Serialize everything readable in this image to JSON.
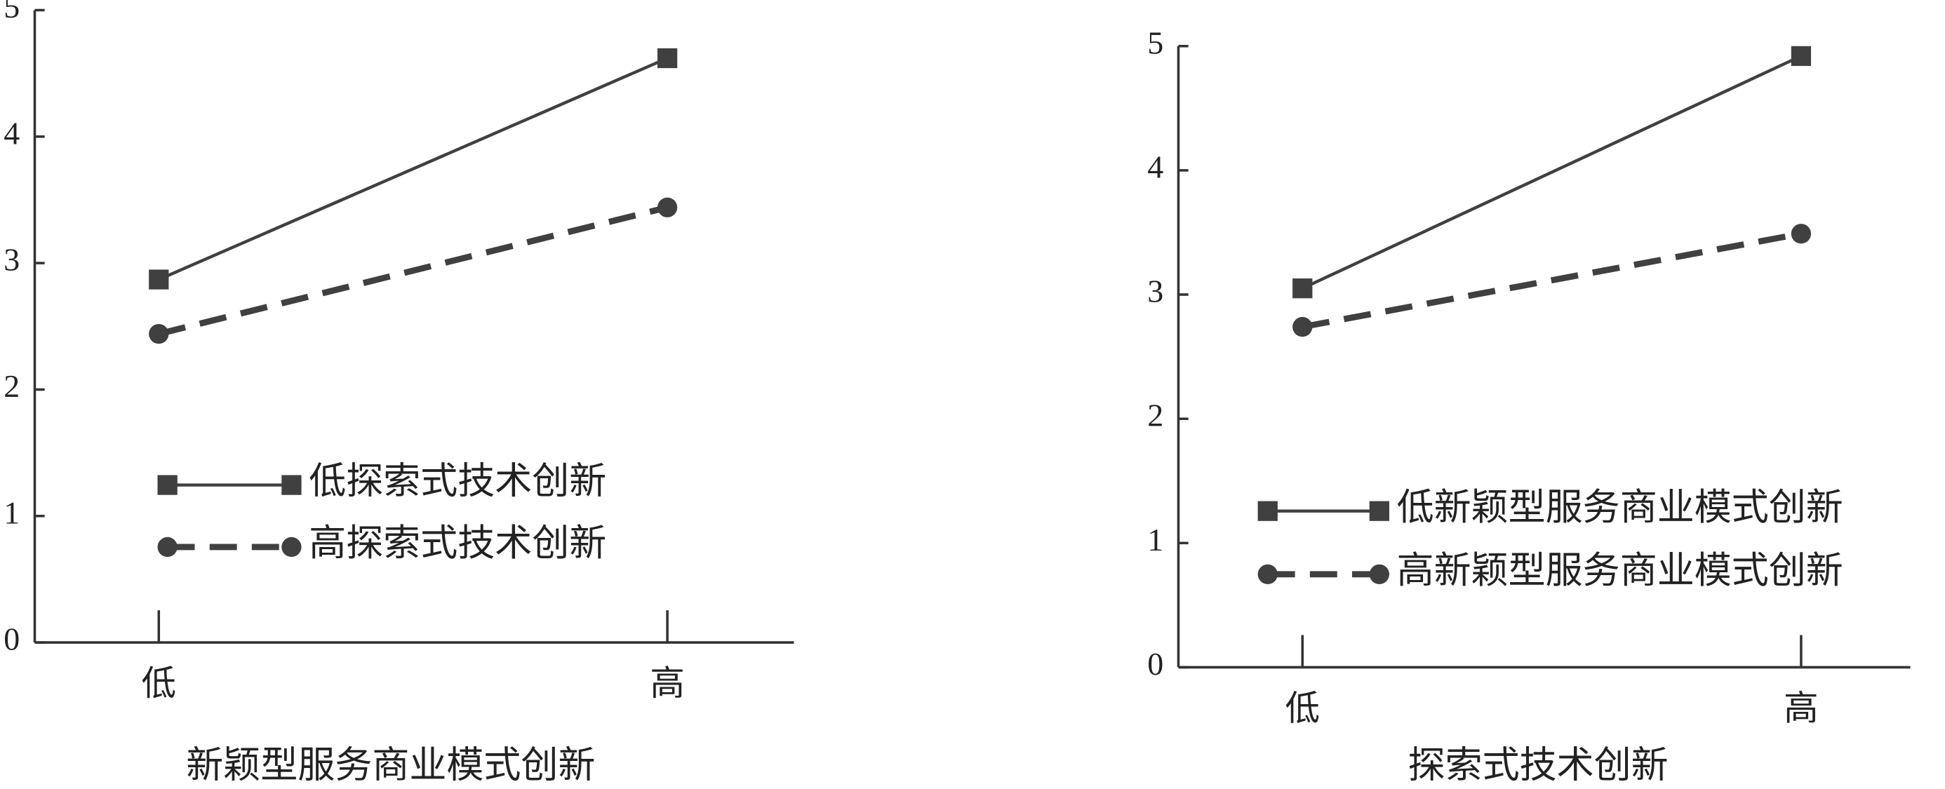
{
  "chart_data": [
    {
      "type": "line",
      "xlabel": "新颖型服务商业模式创新",
      "categories": [
        "低",
        "高"
      ],
      "series": [
        {
          "name": "低探索式技术创新",
          "color": "#404040",
          "line_style": "solid",
          "marker": "square",
          "values": [
            2.87,
            4.62
          ]
        },
        {
          "name": "高探索式技术创新",
          "color": "#404040",
          "line_style": "dashed",
          "marker": "circle",
          "values": [
            2.44,
            3.44
          ]
        }
      ],
      "ylim": [
        0,
        5
      ],
      "yticks": [
        0,
        1,
        2,
        3,
        4,
        5
      ]
    },
    {
      "type": "line",
      "xlabel": "探索式技术创新",
      "categories": [
        "低",
        "高"
      ],
      "series": [
        {
          "name": "低新颖型服务商业模式创新",
          "color": "#404040",
          "line_style": "solid",
          "marker": "square",
          "values": [
            3.05,
            4.92
          ]
        },
        {
          "name": "高新颖型服务商业模式创新",
          "color": "#404040",
          "line_style": "dashed",
          "marker": "circle",
          "values": [
            2.74,
            3.49
          ]
        }
      ],
      "ylim": [
        0,
        5
      ],
      "yticks": [
        0,
        1,
        2,
        3,
        4,
        5
      ]
    }
  ]
}
